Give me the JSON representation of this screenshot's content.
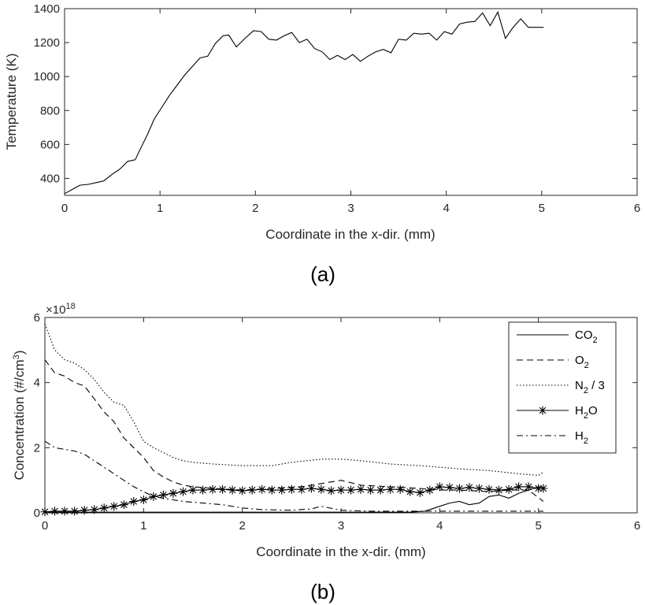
{
  "chart_data": [
    {
      "type": "line",
      "panel_label": "(a)",
      "xlabel": "Coordinate in the x-dir. (mm)",
      "ylabel": "Temperature (K)",
      "xlim": [
        0,
        6
      ],
      "ylim": [
        300,
        1400
      ],
      "xticks": [
        "0",
        "1",
        "2",
        "3",
        "4",
        "5",
        "6"
      ],
      "yticks": [
        "400",
        "600",
        "800",
        "1000",
        "1200",
        "1400"
      ],
      "grid": false,
      "series": [
        {
          "color": "#000000",
          "x": [
            0,
            0.08,
            0.16,
            0.25,
            0.33,
            0.41,
            0.5,
            0.58,
            0.66,
            0.74,
            0.8,
            0.87,
            0.94,
            1.02,
            1.1,
            1.18,
            1.26,
            1.34,
            1.42,
            1.5,
            1.58,
            1.66,
            1.72,
            1.8,
            1.9,
            1.98,
            2.06,
            2.14,
            2.22,
            2.3,
            2.38,
            2.46,
            2.54,
            2.62,
            2.7,
            2.78,
            2.86,
            2.94,
            3.02,
            3.1,
            3.18,
            3.26,
            3.34,
            3.42,
            3.5,
            3.58,
            3.66,
            3.74,
            3.82,
            3.9,
            3.98,
            4.06,
            4.14,
            4.22,
            4.3,
            4.38,
            4.46,
            4.54,
            4.62,
            4.7,
            4.78,
            4.86,
            4.94,
            5.02
          ],
          "y": [
            310,
            335,
            360,
            365,
            375,
            385,
            425,
            455,
            500,
            510,
            580,
            660,
            750,
            820,
            890,
            950,
            1010,
            1060,
            1110,
            1120,
            1195,
            1240,
            1245,
            1175,
            1230,
            1270,
            1265,
            1220,
            1215,
            1240,
            1260,
            1200,
            1220,
            1165,
            1145,
            1100,
            1125,
            1100,
            1130,
            1090,
            1120,
            1145,
            1160,
            1140,
            1220,
            1215,
            1255,
            1250,
            1255,
            1215,
            1265,
            1250,
            1310,
            1320,
            1325,
            1375,
            1300,
            1380,
            1225,
            1290,
            1340,
            1290,
            1290,
            1290
          ]
        }
      ]
    },
    {
      "type": "line",
      "panel_label": "(b)",
      "xlabel": "Coordinate in the x-dir. (mm)",
      "ylabel_main": "Concentration (#/cm",
      "ylabel_sup": "3",
      "ylabel_end": ")",
      "y_multiplier": "×10",
      "y_multiplier_exp": "18",
      "xlim": [
        0,
        6
      ],
      "ylim": [
        0,
        6
      ],
      "xticks": [
        "0",
        "1",
        "2",
        "3",
        "4",
        "5",
        "6"
      ],
      "yticks": [
        "0",
        "2",
        "4",
        "6"
      ],
      "grid": false,
      "legend_position": "top-right",
      "series": [
        {
          "name_main": "CO",
          "name_sub": "2",
          "name_rest": "",
          "style": "solid",
          "x": [
            0,
            0.5,
            1.0,
            1.5,
            2.0,
            2.5,
            3.0,
            3.5,
            3.7,
            3.85,
            4.0,
            4.1,
            4.2,
            4.3,
            4.4,
            4.5,
            4.6,
            4.7,
            4.8,
            4.9,
            5.0,
            5.05
          ],
          "y": [
            0.02,
            0.02,
            0.02,
            0.02,
            0.02,
            0.02,
            0.02,
            0.02,
            0.02,
            0.05,
            0.2,
            0.3,
            0.35,
            0.25,
            0.3,
            0.5,
            0.55,
            0.45,
            0.6,
            0.7,
            0.8,
            0.75
          ]
        },
        {
          "name_main": "O",
          "name_sub": "2",
          "name_rest": "",
          "style": "dashed",
          "x": [
            0,
            0.05,
            0.1,
            0.2,
            0.3,
            0.4,
            0.5,
            0.6,
            0.7,
            0.8,
            0.9,
            1.0,
            1.1,
            1.2,
            1.3,
            1.4,
            1.5,
            1.7,
            2.0,
            2.3,
            2.6,
            2.8,
            3.0,
            3.2,
            3.5,
            3.8,
            4.0,
            4.2,
            4.5,
            4.7,
            4.9,
            5.05
          ],
          "y": [
            4.7,
            4.5,
            4.3,
            4.2,
            4.0,
            3.9,
            3.5,
            3.1,
            2.8,
            2.3,
            2.0,
            1.7,
            1.3,
            1.1,
            0.95,
            0.85,
            0.8,
            0.75,
            0.7,
            0.75,
            0.8,
            0.9,
            1.0,
            0.85,
            0.8,
            0.75,
            0.7,
            0.7,
            0.65,
            0.7,
            0.7,
            0.35
          ]
        },
        {
          "name_main": "N",
          "name_sub": "2",
          "name_rest": " / 3",
          "style": "dotted",
          "x": [
            0,
            0.05,
            0.1,
            0.2,
            0.3,
            0.4,
            0.5,
            0.6,
            0.7,
            0.8,
            0.9,
            1.0,
            1.1,
            1.2,
            1.3,
            1.4,
            1.5,
            1.7,
            2.0,
            2.3,
            2.5,
            2.8,
            3.0,
            3.2,
            3.5,
            3.8,
            4.0,
            4.2,
            4.5,
            4.8,
            5.0,
            5.05
          ],
          "y": [
            5.8,
            5.4,
            5.0,
            4.7,
            4.6,
            4.4,
            4.1,
            3.7,
            3.4,
            3.3,
            2.8,
            2.2,
            2.0,
            1.85,
            1.7,
            1.6,
            1.55,
            1.5,
            1.45,
            1.45,
            1.55,
            1.65,
            1.65,
            1.6,
            1.5,
            1.45,
            1.4,
            1.35,
            1.3,
            1.2,
            1.15,
            1.25
          ]
        },
        {
          "name_main": "H",
          "name_sub": "2",
          "name_rest": "O",
          "style": "solid-star",
          "x": [
            0,
            0.1,
            0.2,
            0.3,
            0.4,
            0.5,
            0.6,
            0.7,
            0.8,
            0.9,
            1.0,
            1.1,
            1.2,
            1.3,
            1.4,
            1.5,
            1.6,
            1.7,
            1.8,
            1.9,
            2.0,
            2.1,
            2.2,
            2.3,
            2.4,
            2.5,
            2.6,
            2.7,
            2.8,
            2.9,
            3.0,
            3.1,
            3.2,
            3.3,
            3.4,
            3.5,
            3.6,
            3.7,
            3.8,
            3.9,
            4.0,
            4.1,
            4.2,
            4.3,
            4.4,
            4.5,
            4.6,
            4.7,
            4.8,
            4.9,
            5.0,
            5.05
          ],
          "y": [
            0.03,
            0.05,
            0.05,
            0.05,
            0.08,
            0.1,
            0.15,
            0.2,
            0.25,
            0.35,
            0.4,
            0.5,
            0.55,
            0.6,
            0.65,
            0.7,
            0.7,
            0.72,
            0.72,
            0.7,
            0.68,
            0.7,
            0.72,
            0.7,
            0.7,
            0.72,
            0.72,
            0.75,
            0.72,
            0.68,
            0.7,
            0.7,
            0.72,
            0.7,
            0.7,
            0.72,
            0.72,
            0.65,
            0.62,
            0.7,
            0.8,
            0.78,
            0.75,
            0.78,
            0.75,
            0.72,
            0.7,
            0.72,
            0.8,
            0.8,
            0.75,
            0.75
          ]
        },
        {
          "name_main": "H",
          "name_sub": "2",
          "name_rest": "",
          "style": "dashdot",
          "x": [
            0,
            0.05,
            0.1,
            0.2,
            0.3,
            0.4,
            0.5,
            0.6,
            0.7,
            0.8,
            0.9,
            1.0,
            1.1,
            1.2,
            1.4,
            1.6,
            1.8,
            2.0,
            2.2,
            2.5,
            2.7,
            2.8,
            3.0,
            3.3,
            3.5,
            3.8,
            4.0,
            4.3,
            4.6,
            4.8,
            5.0,
            5.05
          ],
          "y": [
            2.2,
            2.1,
            2.0,
            1.95,
            1.9,
            1.8,
            1.6,
            1.4,
            1.2,
            1.0,
            0.8,
            0.65,
            0.5,
            0.45,
            0.35,
            0.3,
            0.25,
            0.15,
            0.1,
            0.08,
            0.12,
            0.2,
            0.08,
            0.05,
            0.05,
            0.05,
            0.05,
            0.05,
            0.05,
            0.05,
            0.05,
            0.05
          ]
        }
      ]
    }
  ]
}
